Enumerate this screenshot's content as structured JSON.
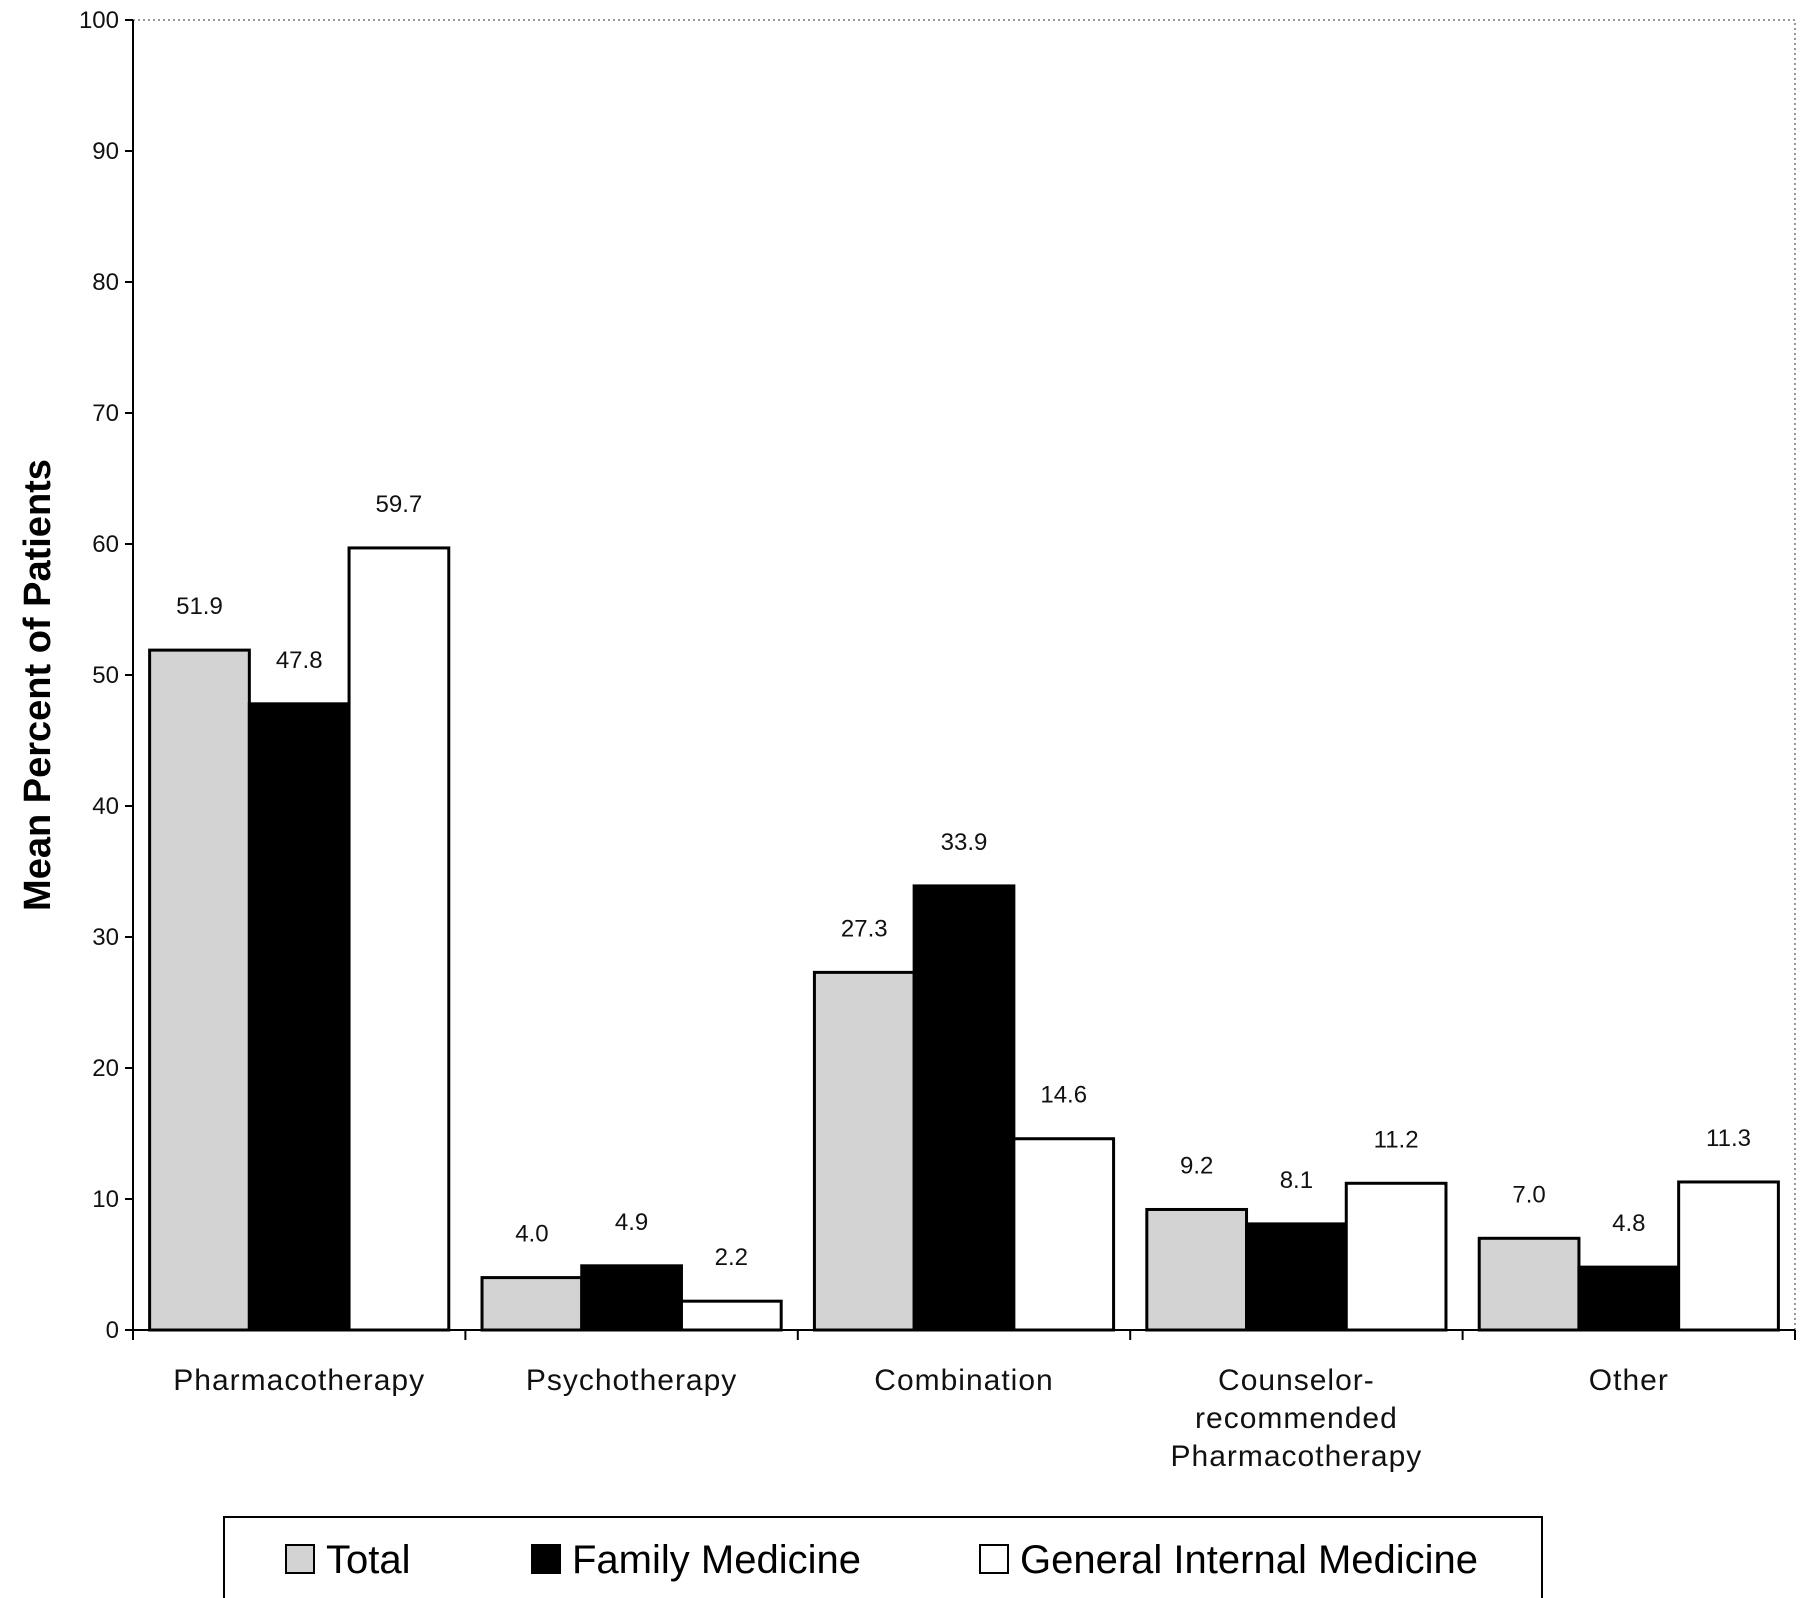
{
  "chart_data": {
    "type": "bar",
    "title": "",
    "xlabel": "",
    "ylabel": "Mean Percent of Patients",
    "ylim": [
      0,
      100
    ],
    "yticks": [
      "0",
      "10",
      "20",
      "30",
      "40",
      "50",
      "60",
      "70",
      "80",
      "90",
      "100"
    ],
    "grid": false,
    "legend_position": "bottom",
    "categories": [
      [
        "Pharmacotherapy"
      ],
      [
        "Psychotherapy"
      ],
      [
        "Combination"
      ],
      [
        "Counselor-",
        "recommended",
        "Pharmacotherapy"
      ],
      [
        "Other"
      ]
    ],
    "series": [
      {
        "name": "Total",
        "color": "#d3d3d3",
        "values": [
          51.9,
          4.0,
          27.3,
          9.2,
          7.0
        ],
        "labels": [
          "51.9",
          "4.0",
          "27.3",
          "9.2",
          "7.0"
        ]
      },
      {
        "name": "Family Medicine",
        "color": "#000000",
        "values": [
          47.8,
          4.9,
          33.9,
          8.1,
          4.8
        ],
        "labels": [
          "47.8",
          "4.9",
          "33.9",
          "8.1",
          "4.8"
        ]
      },
      {
        "name": "General Internal Medicine",
        "color": "#ffffff",
        "values": [
          59.7,
          2.2,
          14.6,
          11.2,
          11.3
        ],
        "labels": [
          "59.7",
          "2.2",
          "14.6",
          "11.2",
          "11.3"
        ]
      }
    ]
  }
}
